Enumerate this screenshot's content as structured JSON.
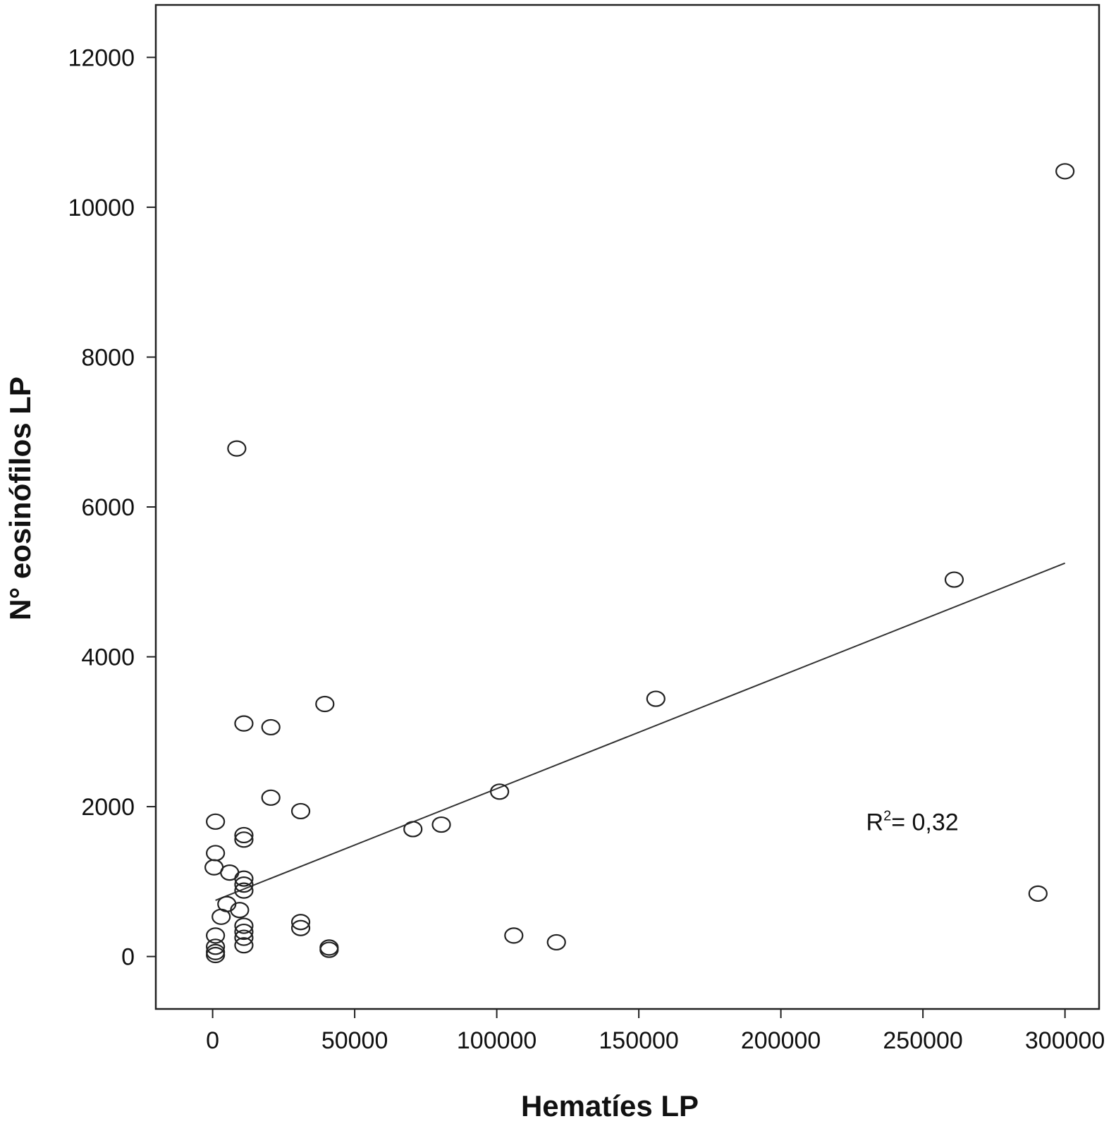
{
  "chart_data": {
    "type": "scatter",
    "title": "",
    "xlabel": "Hematíes LP",
    "ylabel": "N° eosinófilos LP",
    "xlim": [
      -20000,
      312000
    ],
    "ylim": [
      -700,
      12700
    ],
    "xticks": [
      0,
      50000,
      100000,
      150000,
      200000,
      250000,
      300000
    ],
    "yticks": [
      0,
      2000,
      4000,
      6000,
      8000,
      10000,
      12000
    ],
    "grid": false,
    "points": [
      {
        "x": 300000,
        "y": 10480
      },
      {
        "x": 8500,
        "y": 6780
      },
      {
        "x": 261000,
        "y": 5030
      },
      {
        "x": 156000,
        "y": 3440
      },
      {
        "x": 39500,
        "y": 3370
      },
      {
        "x": 11000,
        "y": 3110
      },
      {
        "x": 20500,
        "y": 3060
      },
      {
        "x": 101000,
        "y": 2200
      },
      {
        "x": 20500,
        "y": 2120
      },
      {
        "x": 31000,
        "y": 1940
      },
      {
        "x": 1000,
        "y": 1800
      },
      {
        "x": 80500,
        "y": 1760
      },
      {
        "x": 70500,
        "y": 1700
      },
      {
        "x": 11000,
        "y": 1620
      },
      {
        "x": 11000,
        "y": 1560
      },
      {
        "x": 1000,
        "y": 1380
      },
      {
        "x": 500,
        "y": 1190
      },
      {
        "x": 6000,
        "y": 1120
      },
      {
        "x": 11000,
        "y": 1040
      },
      {
        "x": 11000,
        "y": 960
      },
      {
        "x": 11000,
        "y": 880
      },
      {
        "x": 290500,
        "y": 840
      },
      {
        "x": 5000,
        "y": 700
      },
      {
        "x": 9500,
        "y": 620
      },
      {
        "x": 3000,
        "y": 530
      },
      {
        "x": 31000,
        "y": 460
      },
      {
        "x": 11000,
        "y": 410
      },
      {
        "x": 31000,
        "y": 380
      },
      {
        "x": 11000,
        "y": 330
      },
      {
        "x": 1000,
        "y": 280
      },
      {
        "x": 106000,
        "y": 280
      },
      {
        "x": 11000,
        "y": 250
      },
      {
        "x": 121000,
        "y": 190
      },
      {
        "x": 11000,
        "y": 150
      },
      {
        "x": 1000,
        "y": 130
      },
      {
        "x": 41000,
        "y": 120
      },
      {
        "x": 41000,
        "y": 90
      },
      {
        "x": 1000,
        "y": 60
      },
      {
        "x": 1000,
        "y": 20
      }
    ],
    "fit_line": {
      "x": [
        1000,
        300000
      ],
      "y": [
        750,
        5250
      ]
    },
    "annotation": {
      "base": "R",
      "sup": "2",
      "rest": "= 0,32",
      "x": 230000,
      "y": 1800
    }
  }
}
